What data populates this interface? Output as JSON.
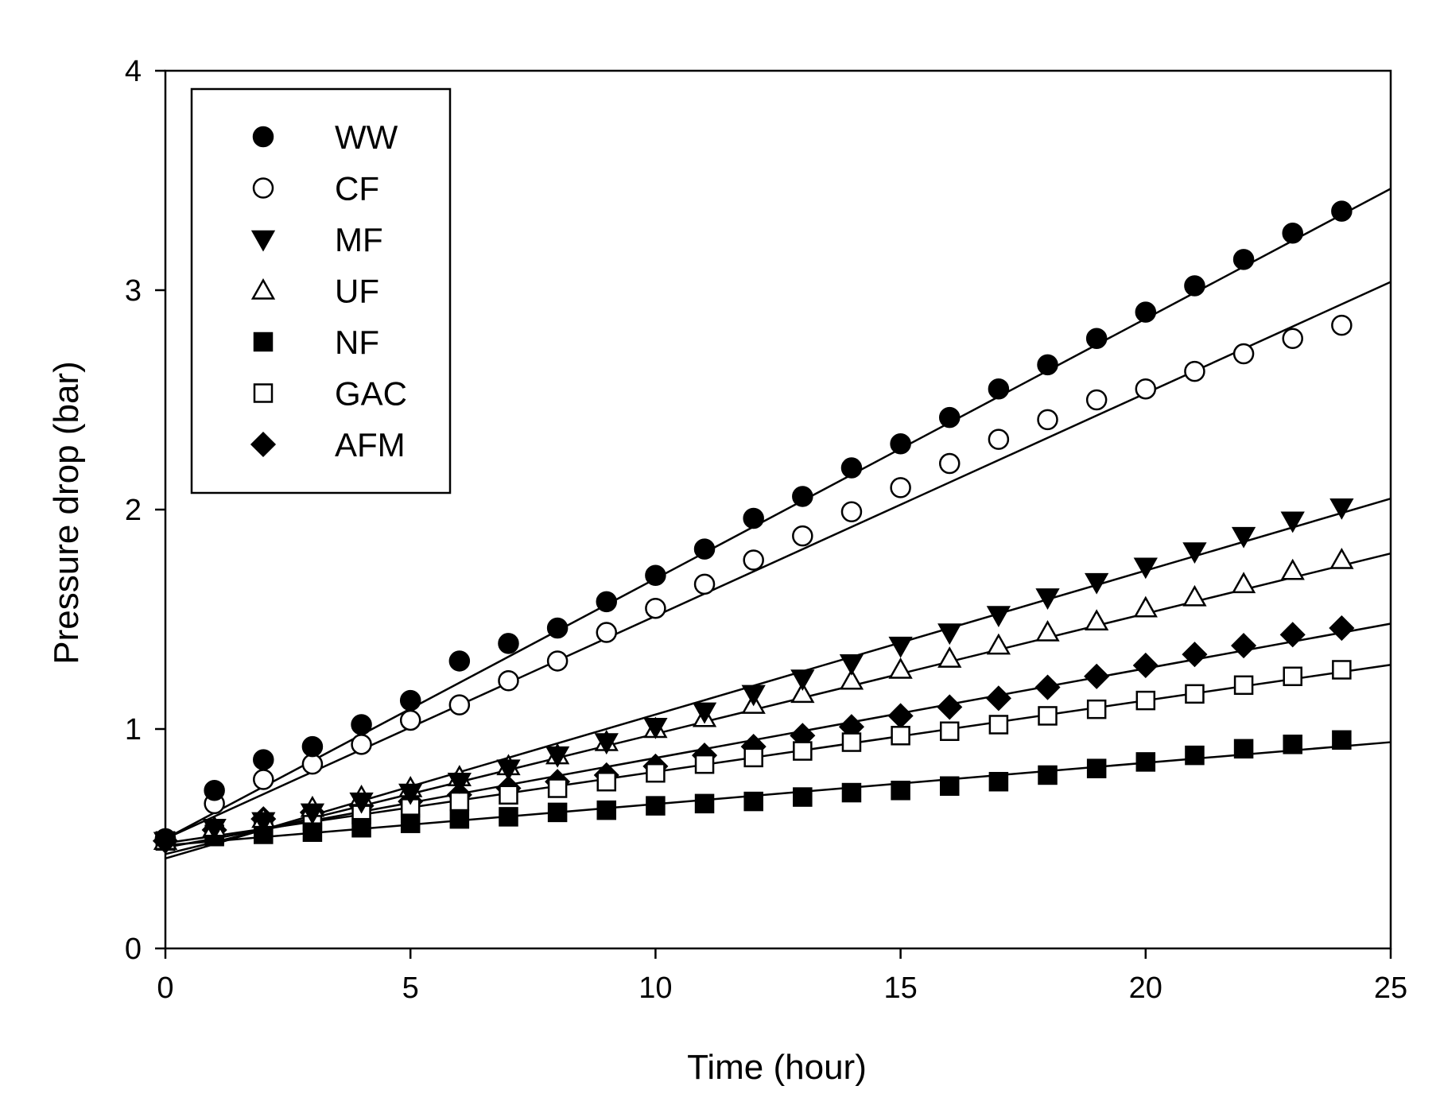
{
  "chart_data": {
    "type": "scatter",
    "title": "",
    "xlabel": "Time (hour)",
    "ylabel": "Pressure drop (bar)",
    "xlim": [
      0,
      25
    ],
    "ylim": [
      0,
      4
    ],
    "xticks": [
      0,
      5,
      10,
      15,
      20,
      25
    ],
    "yticks": [
      0,
      1,
      2,
      3,
      4
    ],
    "grid": false,
    "legend_position": "top-left",
    "x": [
      0,
      1,
      2,
      3,
      4,
      5,
      6,
      7,
      8,
      9,
      10,
      11,
      12,
      13,
      14,
      15,
      16,
      17,
      18,
      19,
      20,
      21,
      22,
      23,
      24
    ],
    "series": [
      {
        "name": "WW",
        "marker": "filled-circle",
        "values": [
          0.5,
          0.72,
          0.86,
          0.92,
          1.02,
          1.13,
          1.31,
          1.39,
          1.46,
          1.58,
          1.7,
          1.82,
          1.96,
          2.06,
          2.19,
          2.3,
          2.42,
          2.55,
          2.66,
          2.78,
          2.9,
          3.02,
          3.14,
          3.26,
          3.36
        ],
        "fit": {
          "intercept": 0.5,
          "slope": 0.1185
        }
      },
      {
        "name": "CF",
        "marker": "open-circle",
        "values": [
          0.5,
          0.66,
          0.77,
          0.84,
          0.93,
          1.04,
          1.11,
          1.22,
          1.31,
          1.44,
          1.55,
          1.66,
          1.77,
          1.88,
          1.99,
          2.1,
          2.21,
          2.32,
          2.41,
          2.5,
          2.55,
          2.63,
          2.71,
          2.78,
          2.84
        ],
        "fit": {
          "intercept": 0.5,
          "slope": 0.1015
        }
      },
      {
        "name": "MF",
        "marker": "filled-triangle-down",
        "values": [
          0.49,
          0.55,
          0.58,
          0.62,
          0.67,
          0.71,
          0.76,
          0.82,
          0.88,
          0.94,
          1.01,
          1.08,
          1.16,
          1.23,
          1.3,
          1.38,
          1.44,
          1.52,
          1.6,
          1.67,
          1.74,
          1.81,
          1.88,
          1.95,
          2.01
        ],
        "fit": {
          "intercept": 0.41,
          "slope": 0.0656
        }
      },
      {
        "name": "UF",
        "marker": "open-triangle-up",
        "values": [
          0.49,
          0.55,
          0.59,
          0.64,
          0.69,
          0.73,
          0.78,
          0.83,
          0.88,
          0.94,
          1.0,
          1.05,
          1.11,
          1.16,
          1.22,
          1.27,
          1.32,
          1.38,
          1.44,
          1.49,
          1.55,
          1.6,
          1.66,
          1.72,
          1.77
        ],
        "fit": {
          "intercept": 0.43,
          "slope": 0.0548
        }
      },
      {
        "name": "NF",
        "marker": "filled-square",
        "values": [
          0.49,
          0.51,
          0.52,
          0.53,
          0.55,
          0.57,
          0.59,
          0.6,
          0.62,
          0.63,
          0.65,
          0.66,
          0.67,
          0.69,
          0.71,
          0.72,
          0.74,
          0.76,
          0.79,
          0.82,
          0.85,
          0.88,
          0.91,
          0.93,
          0.95
        ],
        "fit": {
          "intercept": 0.47,
          "slope": 0.0188
        }
      },
      {
        "name": "GAC",
        "marker": "open-square",
        "values": [
          0.49,
          0.52,
          0.55,
          0.58,
          0.61,
          0.64,
          0.67,
          0.7,
          0.73,
          0.76,
          0.8,
          0.84,
          0.87,
          0.9,
          0.94,
          0.97,
          0.99,
          1.02,
          1.06,
          1.09,
          1.13,
          1.16,
          1.2,
          1.24,
          1.27
        ],
        "fit": {
          "intercept": 0.48,
          "slope": 0.0325
        }
      },
      {
        "name": "AFM",
        "marker": "filled-diamond",
        "values": [
          0.49,
          0.54,
          0.59,
          0.62,
          0.65,
          0.67,
          0.7,
          0.73,
          0.76,
          0.79,
          0.83,
          0.88,
          0.92,
          0.97,
          1.01,
          1.06,
          1.1,
          1.14,
          1.19,
          1.24,
          1.29,
          1.34,
          1.38,
          1.43,
          1.46
        ],
        "fit": {
          "intercept": 0.46,
          "slope": 0.0408
        }
      }
    ]
  }
}
